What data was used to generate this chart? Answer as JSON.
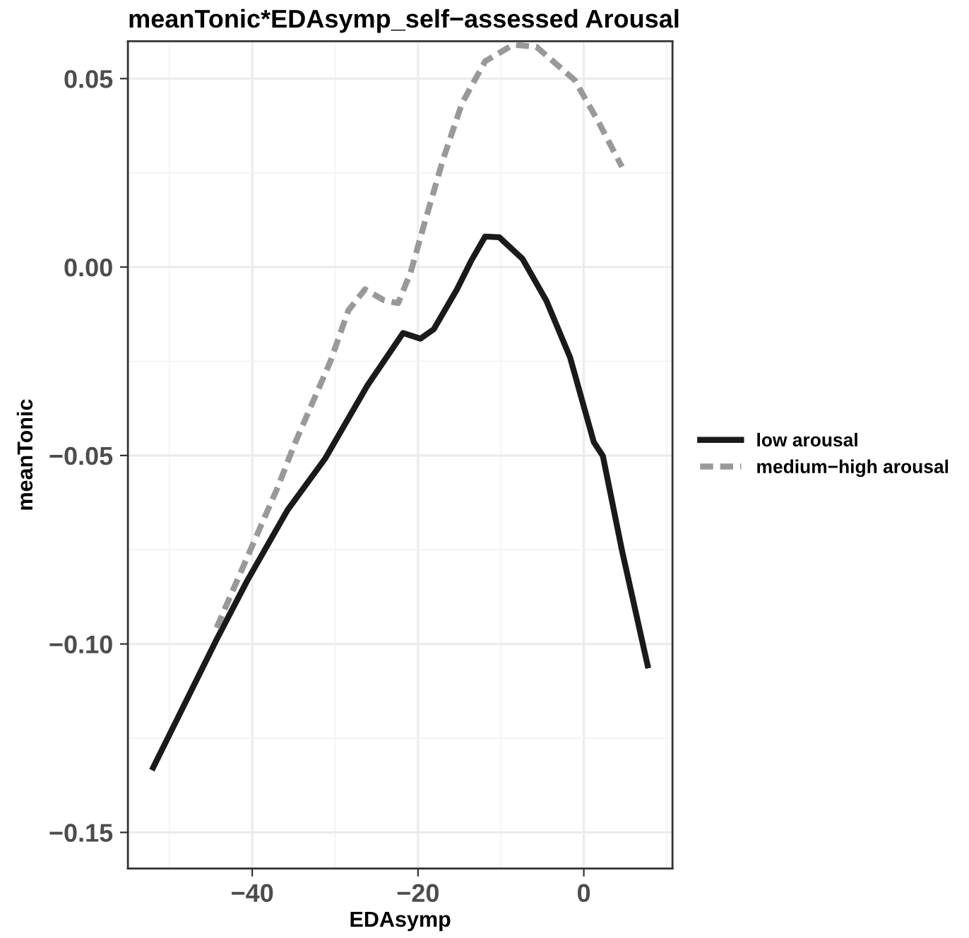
{
  "chart_data": {
    "type": "line",
    "title": "meanTonic*EDAsymp_self−assessed Arousal",
    "xlabel": "EDAsymp",
    "ylabel": "meanTonic",
    "xlim": [
      -55,
      10.7
    ],
    "ylim": [
      -0.1596,
      0.0599
    ],
    "xticks": [
      {
        "value": -50,
        "label": null
      },
      {
        "value": -40,
        "label": "−40"
      },
      {
        "value": -30,
        "label": null
      },
      {
        "value": -20,
        "label": "−20"
      },
      {
        "value": -10,
        "label": null
      },
      {
        "value": 0,
        "label": "0"
      },
      {
        "value": 10,
        "label": null
      }
    ],
    "yticks": [
      {
        "value": -0.15,
        "label": "−0.15"
      },
      {
        "value": -0.125,
        "label": null
      },
      {
        "value": -0.1,
        "label": "−0.10"
      },
      {
        "value": -0.075,
        "label": null
      },
      {
        "value": -0.05,
        "label": "−0.05"
      },
      {
        "value": -0.025,
        "label": null
      },
      {
        "value": 0,
        "label": "0.00"
      },
      {
        "value": 0.025,
        "label": null
      },
      {
        "value": 0.05,
        "label": "0.05"
      }
    ],
    "grid": true,
    "legend": "right",
    "series": [
      {
        "name": "low arousal",
        "color": "#1a1a1a",
        "line_style": "solid",
        "x": [
          -51.95,
          -44.3,
          -40.6,
          -35.75,
          -31.2,
          -26.1,
          -21.8,
          -19.7,
          -18.1,
          -15.3,
          -13.6,
          -11.9,
          -10.2,
          -7.4,
          -4.5,
          -1.65,
          1.2,
          2.3,
          4.6,
          7.7
        ],
        "values": [
          -0.1328,
          -0.0988,
          -0.0832,
          -0.0645,
          -0.0508,
          -0.0314,
          -0.0175,
          -0.019,
          -0.0165,
          -0.0059,
          0.0016,
          0.0081,
          0.0079,
          0.0022,
          -0.009,
          -0.024,
          -0.0464,
          -0.0501,
          -0.0751,
          -0.1057
        ]
      },
      {
        "name": "medium−high arousal",
        "color": "#999999",
        "line_style": "dashed",
        "x": [
          -44.3,
          -40.6,
          -36.9,
          -34.9,
          -30.6,
          -28.4,
          -26.4,
          -24.1,
          -22.4,
          -20.9,
          -19.3,
          -17.0,
          -14.7,
          -11.9,
          -8.5,
          -5.7,
          -1.1,
          1.8,
          4.6
        ],
        "values": [
          -0.0957,
          -0.077,
          -0.0583,
          -0.047,
          -0.0252,
          -0.0115,
          -0.0059,
          -0.0088,
          -0.0096,
          -0.0015,
          0.011,
          0.0284,
          0.0434,
          0.0546,
          0.059,
          0.0584,
          0.0496,
          0.0384,
          0.0266
        ]
      }
    ]
  }
}
